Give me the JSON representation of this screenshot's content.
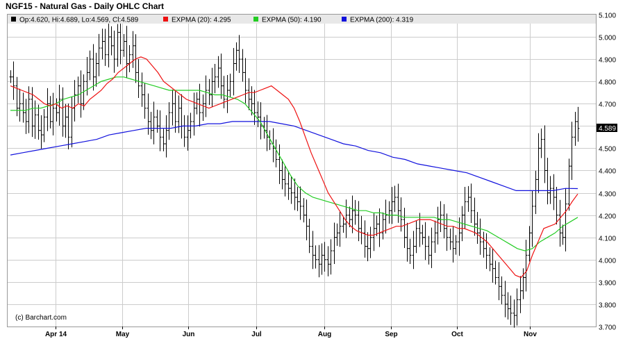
{
  "title": "NGF15 - Natural Gas - Daily OHLC Chart",
  "legend": {
    "ohlc": "Op:4.620, Hi:4.689, Lo:4.569, Cl:4.589",
    "ema20": "EXPMA (20): 4.295",
    "ema50": "EXPMA (50): 4.190",
    "ema200": "EXPMA (200): 4.319"
  },
  "credit": "(c) Barchart.com",
  "last_price_label": "4.589",
  "colors": {
    "ohlc": "#000000",
    "ema20": "#ee1111",
    "ema50": "#22cc22",
    "ema200": "#1111dd",
    "grid": "#cccccc",
    "legend_bg": "#e8e8e8"
  },
  "chart_data": {
    "type": "ohlc",
    "ylim": [
      3.7,
      5.1
    ],
    "yticks": [
      "3.700",
      "3.800",
      "3.900",
      "4.000",
      "4.100",
      "4.200",
      "4.300",
      "4.400",
      "4.500",
      "4.600",
      "4.700",
      "4.800",
      "4.900",
      "5.000",
      "5.100"
    ],
    "months": [
      "Apr 14",
      "May",
      "Jun",
      "Jul",
      "Aug",
      "Sep",
      "Oct",
      "Nov"
    ],
    "close": [
      4.82,
      4.78,
      4.68,
      4.7,
      4.66,
      4.62,
      4.72,
      4.6,
      4.65,
      4.58,
      4.56,
      4.64,
      4.7,
      4.62,
      4.68,
      4.66,
      4.72,
      4.6,
      4.64,
      4.55,
      4.68,
      4.74,
      4.78,
      4.7,
      4.8,
      4.84,
      4.9,
      4.82,
      4.88,
      4.95,
      4.98,
      4.92,
      5.0,
      4.96,
      4.9,
      5.02,
      4.94,
      4.98,
      4.88,
      4.92,
      4.96,
      4.84,
      4.78,
      4.74,
      4.68,
      4.62,
      4.58,
      4.64,
      4.6,
      4.55,
      4.52,
      4.58,
      4.66,
      4.7,
      4.62,
      4.68,
      4.6,
      4.55,
      4.58,
      4.62,
      4.68,
      4.72,
      4.66,
      4.7,
      4.76,
      4.74,
      4.8,
      4.82,
      4.86,
      4.78,
      4.72,
      4.76,
      4.8,
      4.88,
      4.94,
      4.9,
      4.84,
      4.76,
      4.72,
      4.7,
      4.66,
      4.64,
      4.6,
      4.58,
      4.55,
      4.52,
      4.5,
      4.45,
      4.4,
      4.36,
      4.34,
      4.32,
      4.3,
      4.28,
      4.26,
      4.24,
      4.2,
      4.15,
      4.06,
      4.02,
      4.0,
      3.98,
      4.02,
      4.0,
      3.98,
      4.04,
      4.1,
      4.12,
      4.15,
      4.16,
      4.2,
      4.18,
      4.22,
      4.2,
      4.14,
      4.12,
      4.06,
      4.05,
      4.1,
      4.14,
      4.16,
      4.12,
      4.18,
      4.2,
      4.22,
      4.26,
      4.28,
      4.22,
      4.18,
      4.1,
      4.05,
      4.02,
      4.06,
      4.14,
      4.12,
      4.1,
      4.06,
      4.02,
      4.08,
      4.12,
      4.18,
      4.2,
      4.14,
      4.1,
      4.08,
      4.05,
      4.08,
      4.12,
      4.2,
      4.26,
      4.28,
      4.22,
      4.16,
      4.12,
      4.08,
      4.05,
      4.02,
      3.98,
      3.96,
      3.92,
      3.88,
      3.84,
      3.8,
      3.78,
      3.76,
      3.75,
      3.82,
      3.86,
      3.92,
      4.02,
      4.12,
      4.24,
      4.36,
      4.5,
      4.54,
      4.4,
      4.3,
      4.32,
      4.28,
      4.2,
      4.12,
      4.1,
      4.25,
      4.42,
      4.55,
      4.62,
      4.589
    ],
    "ema20": [
      4.78,
      4.77,
      4.76,
      4.75,
      4.74,
      4.72,
      4.7,
      4.69,
      4.7,
      4.68,
      4.69,
      4.68,
      4.7,
      4.69,
      4.72,
      4.74,
      4.76,
      4.79,
      4.81,
      4.84,
      4.86,
      4.88,
      4.9,
      4.91,
      4.9,
      4.87,
      4.84,
      4.8,
      4.78,
      4.76,
      4.74,
      4.72,
      4.71,
      4.7,
      4.69,
      4.68,
      4.69,
      4.7,
      4.71,
      4.72,
      4.73,
      4.74,
      4.75,
      4.75,
      4.76,
      4.77,
      4.78,
      4.76,
      4.74,
      4.72,
      4.68,
      4.62,
      4.55,
      4.48,
      4.42,
      4.36,
      4.3,
      4.26,
      4.22,
      4.18,
      4.15,
      4.13,
      4.12,
      4.11,
      4.11,
      4.12,
      4.13,
      4.14,
      4.15,
      4.15,
      4.16,
      4.17,
      4.18,
      4.18,
      4.18,
      4.17,
      4.16,
      4.15,
      4.15,
      4.14,
      4.14,
      4.13,
      4.12,
      4.1,
      4.08,
      4.05,
      4.02,
      3.99,
      3.96,
      3.93,
      3.92,
      3.95,
      4.02,
      4.08,
      4.14,
      4.15,
      4.16,
      4.19,
      4.22,
      4.26,
      4.295
    ],
    "ema50": [
      4.67,
      4.67,
      4.67,
      4.68,
      4.68,
      4.69,
      4.7,
      4.72,
      4.73,
      4.74,
      4.76,
      4.78,
      4.8,
      4.81,
      4.82,
      4.82,
      4.81,
      4.8,
      4.79,
      4.78,
      4.77,
      4.76,
      4.76,
      4.76,
      4.76,
      4.76,
      4.75,
      4.74,
      4.74,
      4.73,
      4.72,
      4.7,
      4.66,
      4.62,
      4.56,
      4.5,
      4.44,
      4.38,
      4.33,
      4.3,
      4.28,
      4.27,
      4.26,
      4.25,
      4.24,
      4.23,
      4.22,
      4.22,
      4.21,
      4.21,
      4.2,
      4.2,
      4.19,
      4.19,
      4.19,
      4.19,
      4.19,
      4.18,
      4.18,
      4.17,
      4.16,
      4.15,
      4.14,
      4.13,
      4.11,
      4.09,
      4.07,
      4.05,
      4.04,
      4.05,
      4.08,
      4.1,
      4.12,
      4.15,
      4.17,
      4.19
    ],
    "ema200": [
      4.47,
      4.48,
      4.49,
      4.5,
      4.51,
      4.52,
      4.53,
      4.54,
      4.56,
      4.57,
      4.58,
      4.59,
      4.59,
      4.59,
      4.6,
      4.6,
      4.61,
      4.61,
      4.62,
      4.62,
      4.62,
      4.62,
      4.61,
      4.6,
      4.58,
      4.56,
      4.54,
      4.52,
      4.51,
      4.49,
      4.48,
      4.46,
      4.45,
      4.43,
      4.42,
      4.41,
      4.4,
      4.39,
      4.37,
      4.35,
      4.33,
      4.31,
      4.31,
      4.31,
      4.31,
      4.32,
      4.319
    ]
  }
}
